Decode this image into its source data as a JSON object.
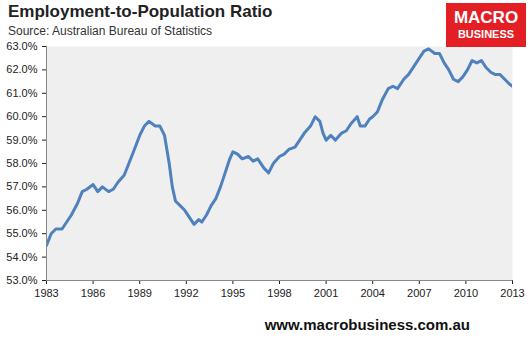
{
  "chart_data": {
    "type": "line",
    "title": "Employment-to-Population Ratio",
    "subtitle": "Source: Australian Bureau of Statistics",
    "logo": [
      "MACRO",
      "BUSINESS"
    ],
    "footer": "www.macrobusiness.com.au",
    "color": "#4f81bd",
    "grid": false,
    "x": [
      1983.0,
      1983.3,
      1983.6,
      1984.0,
      1984.3,
      1984.6,
      1985.0,
      1985.3,
      1985.6,
      1986.0,
      1986.3,
      1986.6,
      1987.0,
      1987.3,
      1987.6,
      1988.0,
      1988.3,
      1988.6,
      1989.0,
      1989.3,
      1989.6,
      1990.0,
      1990.3,
      1990.6,
      1990.9,
      1991.1,
      1991.3,
      1991.6,
      1991.9,
      1992.2,
      1992.5,
      1992.8,
      1993.0,
      1993.3,
      1993.6,
      1993.9,
      1994.2,
      1994.5,
      1994.8,
      1995.0,
      1995.3,
      1995.6,
      1996.0,
      1996.3,
      1996.6,
      1997.0,
      1997.3,
      1997.6,
      1998.0,
      1998.3,
      1998.6,
      1999.0,
      1999.3,
      1999.6,
      2000.0,
      2000.3,
      2000.6,
      2000.8,
      2001.0,
      2001.3,
      2001.6,
      2002.0,
      2002.3,
      2002.6,
      2003.0,
      2003.2,
      2003.5,
      2003.8,
      2004.0,
      2004.3,
      2004.6,
      2005.0,
      2005.3,
      2005.6,
      2006.0,
      2006.3,
      2006.6,
      2007.0,
      2007.3,
      2007.6,
      2008.0,
      2008.3,
      2008.6,
      2008.9,
      2009.2,
      2009.5,
      2009.8,
      2010.1,
      2010.4,
      2010.7,
      2011.0,
      2011.3,
      2011.6,
      2011.9,
      2012.2,
      2012.5,
      2012.8,
      2013.0
    ],
    "values": [
      54.5,
      55.0,
      55.2,
      55.2,
      55.5,
      55.8,
      56.3,
      56.8,
      56.9,
      57.1,
      56.8,
      57.0,
      56.8,
      56.9,
      57.2,
      57.5,
      58.0,
      58.5,
      59.2,
      59.6,
      59.8,
      59.6,
      59.6,
      59.2,
      58.0,
      57.0,
      56.4,
      56.2,
      56.0,
      55.7,
      55.4,
      55.6,
      55.5,
      55.8,
      56.2,
      56.5,
      57.0,
      57.6,
      58.2,
      58.5,
      58.4,
      58.2,
      58.3,
      58.1,
      58.2,
      57.8,
      57.6,
      58.0,
      58.3,
      58.4,
      58.6,
      58.7,
      59.0,
      59.3,
      59.6,
      60.0,
      59.8,
      59.3,
      59.0,
      59.2,
      59.0,
      59.3,
      59.4,
      59.7,
      60.0,
      59.6,
      59.6,
      59.9,
      60.0,
      60.2,
      60.7,
      61.2,
      61.3,
      61.2,
      61.6,
      61.8,
      62.1,
      62.5,
      62.8,
      62.9,
      62.7,
      62.7,
      62.3,
      62.0,
      61.6,
      61.5,
      61.7,
      62.0,
      62.4,
      62.3,
      62.4,
      62.1,
      61.9,
      61.8,
      61.8,
      61.6,
      61.4,
      61.3
    ],
    "xlim": [
      1983,
      2013
    ],
    "xticks": [
      1983,
      1986,
      1989,
      1992,
      1995,
      1998,
      2001,
      2004,
      2007,
      2010,
      2013
    ],
    "ylim": [
      53,
      63
    ],
    "yticks": [
      {
        "value": 53,
        "label": "53.0%"
      },
      {
        "value": 54,
        "label": "54.0%"
      },
      {
        "value": 55,
        "label": "55.0%"
      },
      {
        "value": 56,
        "label": "56.0%"
      },
      {
        "value": 57,
        "label": "57.0%"
      },
      {
        "value": 58,
        "label": "58.0%"
      },
      {
        "value": 59,
        "label": "59.0%"
      },
      {
        "value": 60,
        "label": "60.0%"
      },
      {
        "value": 61,
        "label": "61.0%"
      },
      {
        "value": 62,
        "label": "62.0%"
      },
      {
        "value": 63,
        "label": "63.0%"
      }
    ]
  }
}
